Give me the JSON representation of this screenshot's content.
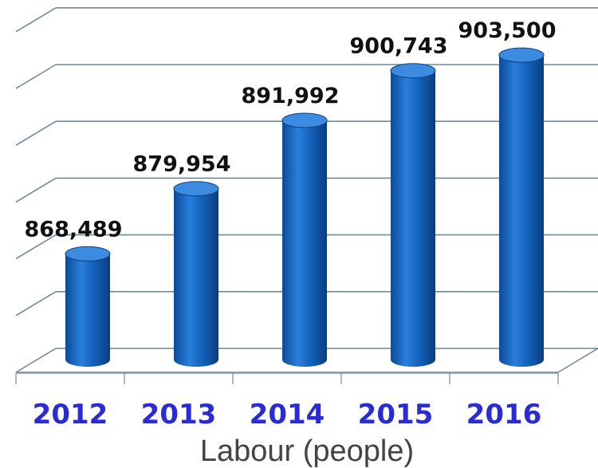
{
  "chart_data": {
    "type": "bar",
    "style": "3d-cylinder",
    "categories": [
      "2012",
      "2013",
      "2014",
      "2015",
      "2016"
    ],
    "values": [
      868489,
      879954,
      891992,
      900743,
      903500
    ],
    "value_labels": [
      "868,489",
      "879,954",
      "891,992",
      "900,743",
      "903,500"
    ],
    "title": "",
    "xlabel": "Labour (people)",
    "ylabel": "",
    "ylim": [
      850000,
      910000
    ],
    "grid": true,
    "legend": "none",
    "colors": {
      "bar": "#1565c0",
      "bar_highlight": "#3d8be0",
      "bar_shadow": "#0b3f82",
      "category_label": "#2b2bd4",
      "gridline": "#6f8a96"
    }
  }
}
